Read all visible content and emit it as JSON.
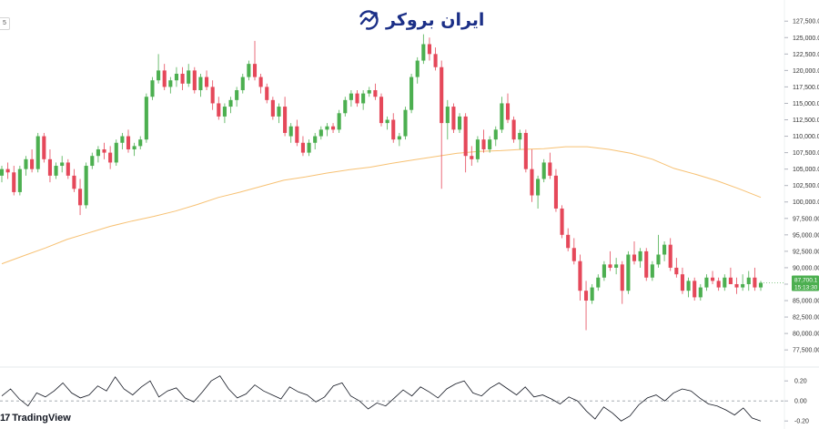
{
  "brand": {
    "name": "ایران بروکر",
    "accent": "#1b2f87"
  },
  "watermark": {
    "glyph": "17",
    "text": "TradingView"
  },
  "legend_chip": "5",
  "chart_data": [
    {
      "type": "candlestick",
      "ylim": [
        76000,
        128500
      ],
      "y_ticks": [
        77500,
        80000,
        82500,
        85000,
        87500,
        90000,
        92500,
        95000,
        97500,
        100000,
        102500,
        105000,
        107500,
        110000,
        112500,
        115000,
        117500,
        120000,
        122500,
        125000,
        127500
      ],
      "y_tick_labels": [
        "77,500.00",
        "80,000.00",
        "82,500.00",
        "85,000.00",
        "",
        "90,000.00",
        "92,500.00",
        "95,000.00",
        "97,500.00",
        "100,000.0",
        "102,500.0",
        "105,000.0",
        "107,500.0",
        "110,000.0",
        "112,500.0",
        "115,000.0",
        "117,500.0",
        "120,000.0",
        "122,500.0",
        "125,000.0",
        "127,500.0"
      ],
      "up_color": "#4caf50",
      "down_color": "#e5485a",
      "candles": [
        [
          104000,
          105500,
          103000,
          105000
        ],
        [
          105000,
          106000,
          103500,
          104500
        ],
        [
          104500,
          105500,
          101000,
          101500
        ],
        [
          101500,
          105500,
          101000,
          105000
        ],
        [
          105000,
          107000,
          104000,
          106500
        ],
        [
          106500,
          108000,
          104500,
          105000
        ],
        [
          105000,
          110500,
          104500,
          110000
        ],
        [
          110000,
          110500,
          106000,
          106500
        ],
        [
          106500,
          108000,
          103000,
          104000
        ],
        [
          104000,
          106000,
          103500,
          105500
        ],
        [
          105500,
          107000,
          104500,
          106000
        ],
        [
          106000,
          106500,
          103500,
          104000
        ],
        [
          104000,
          105000,
          101500,
          102000
        ],
        [
          102000,
          103500,
          98000,
          99500
        ],
        [
          99500,
          106000,
          99000,
          105500
        ],
        [
          105500,
          107500,
          105000,
          107000
        ],
        [
          107000,
          108500,
          106000,
          108000
        ],
        [
          108000,
          109000,
          106500,
          107500
        ],
        [
          107500,
          108500,
          105000,
          106000
        ],
        [
          106000,
          109500,
          105500,
          109000
        ],
        [
          109000,
          110500,
          108000,
          110000
        ],
        [
          110000,
          111000,
          107500,
          108000
        ],
        [
          108000,
          109000,
          107000,
          108500
        ],
        [
          108500,
          110000,
          108000,
          109500
        ],
        [
          109500,
          116500,
          109000,
          116000
        ],
        [
          116000,
          119000,
          115500,
          118500
        ],
        [
          118500,
          122500,
          118000,
          120000
        ],
        [
          120000,
          121000,
          117000,
          117500
        ],
        [
          117500,
          119000,
          116500,
          118500
        ],
        [
          118500,
          120500,
          117500,
          119500
        ],
        [
          119500,
          120500,
          117000,
          118000
        ],
        [
          118000,
          121000,
          117500,
          120000
        ],
        [
          120000,
          120500,
          116500,
          117000
        ],
        [
          117000,
          119500,
          116000,
          119000
        ],
        [
          119000,
          120000,
          117000,
          117500
        ],
        [
          117500,
          118500,
          114000,
          115000
        ],
        [
          115000,
          116000,
          112500,
          113000
        ],
        [
          113000,
          115000,
          112000,
          114500
        ],
        [
          114500,
          116000,
          113500,
          115500
        ],
        [
          115500,
          117500,
          114500,
          117000
        ],
        [
          117000,
          119500,
          116500,
          119000
        ],
        [
          119000,
          121500,
          118500,
          121000
        ],
        [
          121000,
          124500,
          118500,
          119000
        ],
        [
          119000,
          119500,
          116500,
          117500
        ],
        [
          117500,
          118000,
          115000,
          115500
        ],
        [
          115500,
          116000,
          112500,
          113000
        ],
        [
          113000,
          115000,
          112000,
          114500
        ],
        [
          114500,
          116000,
          110000,
          110500
        ],
        [
          110000,
          112000,
          109000,
          111500
        ],
        [
          111500,
          112500,
          108500,
          109000
        ],
        [
          109000,
          110000,
          107000,
          107500
        ],
        [
          107500,
          109500,
          107000,
          109000
        ],
        [
          109000,
          110500,
          108000,
          110000
        ],
        [
          110000,
          111500,
          109500,
          111000
        ],
        [
          111000,
          112000,
          110000,
          111500
        ],
        [
          111500,
          112000,
          110500,
          111000
        ],
        [
          111000,
          114000,
          110500,
          113500
        ],
        [
          113500,
          116000,
          113000,
          115500
        ],
        [
          115500,
          117000,
          114500,
          116500
        ],
        [
          116500,
          117000,
          114500,
          115000
        ],
        [
          115000,
          117000,
          114000,
          116500
        ],
        [
          116500,
          117500,
          116000,
          117000
        ],
        [
          117000,
          118000,
          115500,
          116000
        ],
        [
          116000,
          116500,
          111500,
          112000
        ],
        [
          112000,
          113000,
          111000,
          112500
        ],
        [
          112500,
          113500,
          109000,
          109500
        ],
        [
          109500,
          110500,
          108500,
          110000
        ],
        [
          110000,
          114500,
          109500,
          114000
        ],
        [
          114000,
          119500,
          113500,
          119000
        ],
        [
          119000,
          122000,
          118000,
          121500
        ],
        [
          121500,
          125500,
          121000,
          124000
        ],
        [
          124000,
          125000,
          121500,
          122500
        ],
        [
          122500,
          123500,
          120000,
          120500
        ],
        [
          120500,
          121500,
          102000,
          112000
        ],
        [
          112000,
          115500,
          109500,
          114500
        ],
        [
          114500,
          115000,
          110500,
          111000
        ],
        [
          111000,
          113500,
          110500,
          113000
        ],
        [
          113000,
          113500,
          104500,
          107000
        ],
        [
          107000,
          108500,
          105500,
          106500
        ],
        [
          106500,
          110000,
          106000,
          109500
        ],
        [
          109500,
          111000,
          107500,
          108000
        ],
        [
          108000,
          110000,
          107500,
          109500
        ],
        [
          109500,
          111500,
          108500,
          111000
        ],
        [
          111000,
          116000,
          110500,
          115000
        ],
        [
          115000,
          116500,
          112000,
          112500
        ],
        [
          112500,
          113000,
          109000,
          109500
        ],
        [
          109500,
          111000,
          108000,
          110500
        ],
        [
          110500,
          111000,
          104500,
          105000
        ],
        [
          105000,
          108000,
          100000,
          101000
        ],
        [
          101000,
          104000,
          99000,
          103500
        ],
        [
          103500,
          106500,
          103000,
          106000
        ],
        [
          106000,
          107500,
          103500,
          104000
        ],
        [
          104000,
          105000,
          98500,
          99000
        ],
        [
          99000,
          99500,
          94500,
          95000
        ],
        [
          95000,
          96000,
          92500,
          93000
        ],
        [
          93000,
          94500,
          90500,
          91000
        ],
        [
          91000,
          92000,
          85000,
          86500
        ],
        [
          86500,
          88000,
          80500,
          85000
        ],
        [
          85000,
          87500,
          84500,
          87000
        ],
        [
          87000,
          89000,
          86500,
          88500
        ],
        [
          88500,
          91000,
          88000,
          90500
        ],
        [
          90500,
          92500,
          89500,
          90000
        ],
        [
          90000,
          91500,
          89000,
          90500
        ],
        [
          90500,
          91000,
          84500,
          86500
        ],
        [
          86500,
          92500,
          86000,
          92000
        ],
        [
          92000,
          94000,
          90500,
          91000
        ],
        [
          91000,
          93000,
          90000,
          92500
        ],
        [
          92500,
          93000,
          88000,
          88500
        ],
        [
          88500,
          91000,
          88000,
          90500
        ],
        [
          90500,
          95000,
          90000,
          92000
        ],
        [
          92000,
          94000,
          91000,
          93500
        ],
        [
          93500,
          94500,
          89500,
          90000
        ],
        [
          90000,
          91500,
          88500,
          89000
        ],
        [
          89000,
          90000,
          86000,
          86500
        ],
        [
          86500,
          88500,
          85500,
          88000
        ],
        [
          88000,
          88500,
          85000,
          85500
        ],
        [
          85500,
          87500,
          85000,
          87000
        ],
        [
          87000,
          89000,
          86500,
          88500
        ],
        [
          88500,
          89500,
          87500,
          88000
        ],
        [
          88000,
          88500,
          86500,
          87000
        ],
        [
          87000,
          89000,
          86500,
          88500
        ],
        [
          88500,
          90000,
          87500,
          87500
        ],
        [
          87500,
          88500,
          86000,
          87000
        ],
        [
          87000,
          89000,
          86500,
          87500
        ],
        [
          87500,
          89500,
          86500,
          88500
        ],
        [
          88500,
          90000,
          86500,
          87000
        ],
        [
          87000,
          88000,
          86500,
          87700
        ]
      ],
      "moving_average": {
        "color": "#f7c173",
        "values": [
          90600,
          91800,
          93000,
          94300,
          95300,
          96300,
          97100,
          97800,
          98600,
          99600,
          100700,
          101500,
          102400,
          103300,
          103800,
          104400,
          104900,
          105300,
          105900,
          106400,
          106900,
          107400,
          107700,
          107800,
          108000,
          108100,
          108400,
          108400,
          108000,
          107400,
          106500,
          105100,
          104200,
          103200,
          102000,
          100700
        ]
      },
      "last_price": {
        "label": "87,700.1",
        "countdown": "15:13:30",
        "color": "#4caf50"
      }
    },
    {
      "type": "line",
      "name": "oscillator",
      "ylim": [
        -0.28,
        0.32
      ],
      "y_ticks": [
        0.2,
        0.0,
        -0.2
      ],
      "y_tick_labels": [
        "0.20",
        "0.00",
        "-0.20"
      ],
      "zero_line": {
        "value": 0,
        "style": "dashed",
        "color": "#9aa0a6"
      },
      "line_color": "#131722",
      "values": [
        0.05,
        0.12,
        0.02,
        -0.05,
        0.08,
        0.04,
        0.1,
        0.18,
        0.08,
        0.03,
        0.06,
        0.15,
        0.1,
        0.24,
        0.12,
        0.06,
        0.14,
        0.2,
        0.04,
        0.1,
        0.13,
        0.03,
        -0.01,
        0.09,
        0.2,
        0.25,
        0.12,
        0.03,
        0.07,
        0.16,
        0.1,
        0.06,
        0.02,
        0.14,
        0.09,
        0.06,
        -0.01,
        0.04,
        0.15,
        0.18,
        0.05,
        0.0,
        -0.08,
        -0.02,
        -0.05,
        0.03,
        0.11,
        0.05,
        0.14,
        0.09,
        0.03,
        0.12,
        0.17,
        0.2,
        0.08,
        0.05,
        0.13,
        0.18,
        0.12,
        0.06,
        0.14,
        0.04,
        0.06,
        0.02,
        -0.03,
        0.04,
        0.0,
        -0.1,
        -0.18,
        -0.06,
        -0.12,
        -0.2,
        -0.15,
        -0.04,
        0.03,
        0.06,
        0.0,
        0.08,
        0.12,
        0.1,
        0.03,
        -0.03,
        -0.05,
        -0.09,
        -0.14,
        -0.07,
        -0.17,
        -0.2
      ]
    }
  ]
}
